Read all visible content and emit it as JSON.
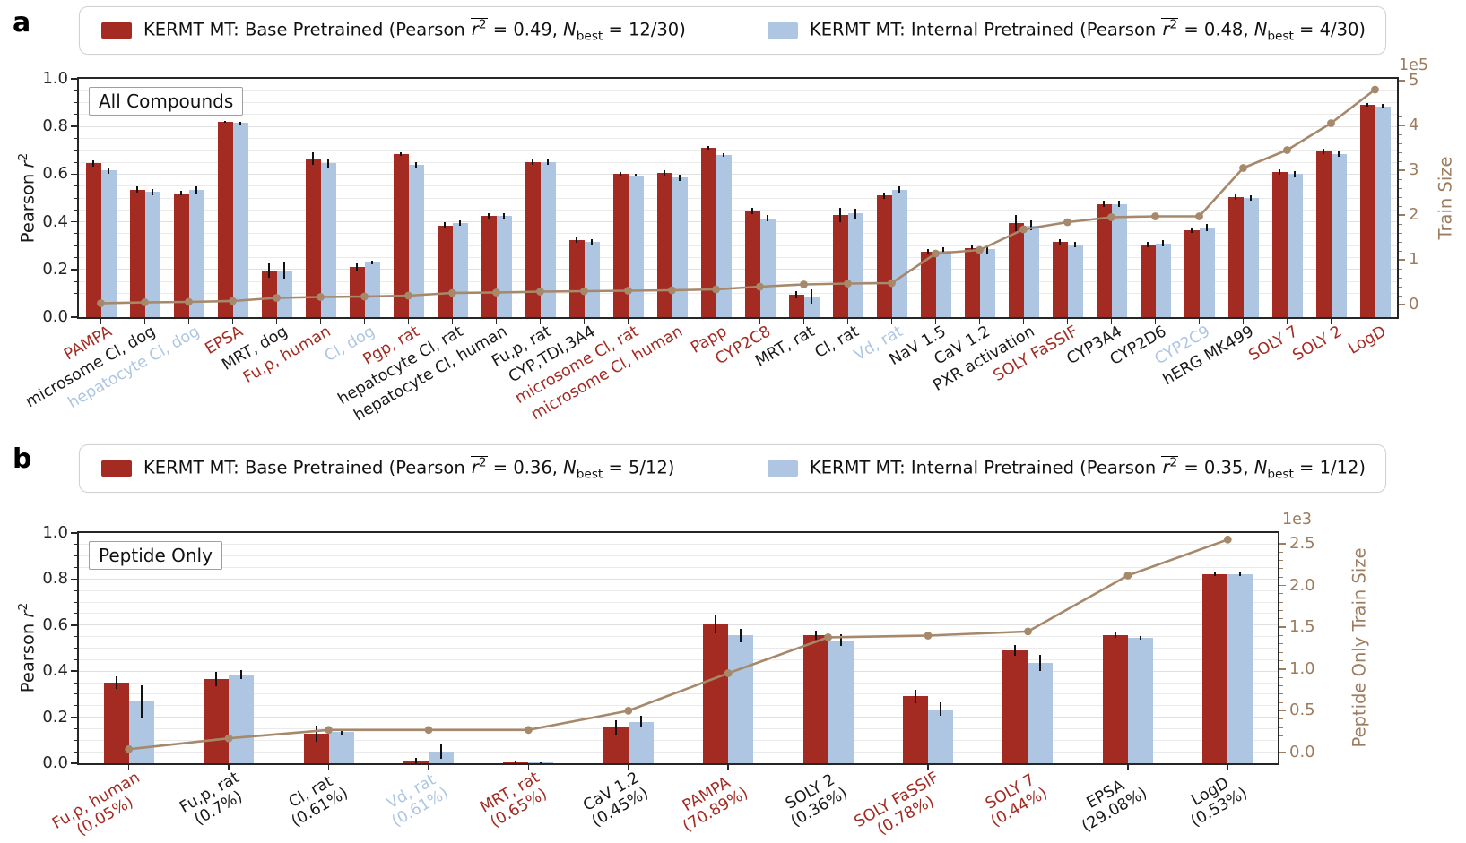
{
  "colors": {
    "base": "#a32b22",
    "internal": "#aec6e2",
    "train": "#a6886b",
    "axis_brown": "#9c7c5e",
    "label_red": "#a32b22",
    "label_blue": "#aec6e2",
    "label_black": "#1a1a1a",
    "grid": "#eaeaea",
    "spine": "#262626",
    "error": "#111111"
  },
  "legend_glue": {
    "pearson": "Pearson",
    "rsym": "r",
    "rsup": "2",
    "eq": "=",
    "sep": ", ",
    "nsym": "N",
    "nsub": "best"
  },
  "chart_data": [
    {
      "type": "bar+line",
      "panel_letter": "a",
      "annotation": "All Compounds",
      "legend": {
        "entries": [
          {
            "name": "KERMT MT: Base Pretrained",
            "pearson_r2": "0.49",
            "n_best": "12/30",
            "color_key": "base"
          },
          {
            "name": "KERMT MT: Internal Pretrained",
            "pearson_r2": "0.48",
            "n_best": "4/30",
            "color_key": "internal"
          }
        ]
      },
      "axes": {
        "left": {
          "label_pre": "Pearson ",
          "label_sym": "r",
          "label_sup": "2",
          "ticks": [
            "0.0",
            "0.2",
            "0.4",
            "0.6",
            "0.8",
            "1.0"
          ],
          "tick_values": [
            0,
            0.2,
            0.4,
            0.6,
            0.8,
            1.0
          ],
          "minor_step": 0.05,
          "ylim": [
            0,
            1
          ]
        },
        "right": {
          "label": "Train Size",
          "offset_text": "1e5",
          "ticks": [
            "0",
            "1",
            "2",
            "3",
            "4",
            "5"
          ],
          "tick_values": [
            0,
            1,
            2,
            3,
            4,
            5
          ],
          "unit": 100000
        }
      },
      "series_names": {
        "base": "KERMT MT: Base Pretrained",
        "internal": "KERMT MT: Internal Pretrained",
        "line": "Train Size"
      },
      "rows": [
        {
          "label": "PAMPA",
          "color": "red",
          "base": 0.645,
          "base_err": 0.012,
          "internal": 0.615,
          "internal_err": 0.012,
          "train": 0.03
        },
        {
          "label": "microsome Cl, dog",
          "color": "black",
          "base": 0.535,
          "base_err": 0.012,
          "internal": 0.525,
          "internal_err": 0.012,
          "train": 0.05
        },
        {
          "label": "hepatocyte Cl, dog",
          "color": "blue",
          "base": 0.52,
          "base_err": 0.01,
          "internal": 0.535,
          "internal_err": 0.015,
          "train": 0.06
        },
        {
          "label": "EPSA",
          "color": "red",
          "base": 0.82,
          "base_err": 0.005,
          "internal": 0.815,
          "internal_err": 0.006,
          "train": 0.08
        },
        {
          "label": "MRT, dog",
          "color": "black",
          "base": 0.195,
          "base_err": 0.03,
          "internal": 0.195,
          "internal_err": 0.035,
          "train": 0.15
        },
        {
          "label": "Fu,p, human",
          "color": "red",
          "base": 0.665,
          "base_err": 0.025,
          "internal": 0.645,
          "internal_err": 0.018,
          "train": 0.17
        },
        {
          "label": "Cl, dog",
          "color": "blue",
          "base": 0.21,
          "base_err": 0.015,
          "internal": 0.23,
          "internal_err": 0.008,
          "train": 0.18
        },
        {
          "label": "Pgp, rat",
          "color": "red",
          "base": 0.685,
          "base_err": 0.008,
          "internal": 0.64,
          "internal_err": 0.012,
          "train": 0.2
        },
        {
          "label": "hepatocyte Cl, rat",
          "color": "black",
          "base": 0.385,
          "base_err": 0.012,
          "internal": 0.395,
          "internal_err": 0.01,
          "train": 0.26
        },
        {
          "label": "hepatocyte Cl, human",
          "color": "black",
          "base": 0.425,
          "base_err": 0.01,
          "internal": 0.425,
          "internal_err": 0.012,
          "train": 0.27
        },
        {
          "label": "Fu,p, rat",
          "color": "black",
          "base": 0.65,
          "base_err": 0.01,
          "internal": 0.65,
          "internal_err": 0.01,
          "train": 0.29
        },
        {
          "label": "CYP,TDI,3A4",
          "color": "black",
          "base": 0.325,
          "base_err": 0.012,
          "internal": 0.315,
          "internal_err": 0.012,
          "train": 0.3
        },
        {
          "label": "microsome Cl, rat",
          "color": "red",
          "base": 0.6,
          "base_err": 0.008,
          "internal": 0.595,
          "internal_err": 0.006,
          "train": 0.31
        },
        {
          "label": "microsome Cl, human",
          "color": "red",
          "base": 0.605,
          "base_err": 0.01,
          "internal": 0.585,
          "internal_err": 0.012,
          "train": 0.32
        },
        {
          "label": "Papp",
          "color": "red",
          "base": 0.71,
          "base_err": 0.008,
          "internal": 0.68,
          "internal_err": 0.008,
          "train": 0.34
        },
        {
          "label": "CYP2C8",
          "color": "red",
          "base": 0.445,
          "base_err": 0.012,
          "internal": 0.415,
          "internal_err": 0.012,
          "train": 0.4
        },
        {
          "label": "MRT, rat",
          "color": "black",
          "base": 0.095,
          "base_err": 0.015,
          "internal": 0.085,
          "internal_err": 0.03,
          "train": 0.45
        },
        {
          "label": "Cl, rat",
          "color": "black",
          "base": 0.43,
          "base_err": 0.03,
          "internal": 0.435,
          "internal_err": 0.02,
          "train": 0.47
        },
        {
          "label": "Vd, rat",
          "color": "blue",
          "base": 0.51,
          "base_err": 0.012,
          "internal": 0.535,
          "internal_err": 0.012,
          "train": 0.48
        },
        {
          "label": "NaV 1.5",
          "color": "black",
          "base": 0.275,
          "base_err": 0.012,
          "internal": 0.28,
          "internal_err": 0.012,
          "train": 1.14
        },
        {
          "label": "CaV 1.2",
          "color": "black",
          "base": 0.29,
          "base_err": 0.015,
          "internal": 0.285,
          "internal_err": 0.02,
          "train": 1.22
        },
        {
          "label": "PXR activation",
          "color": "black",
          "base": 0.395,
          "base_err": 0.035,
          "internal": 0.385,
          "internal_err": 0.02,
          "train": 1.68
        },
        {
          "label": "SOLY FaSSIF",
          "color": "red",
          "base": 0.315,
          "base_err": 0.012,
          "internal": 0.305,
          "internal_err": 0.012,
          "train": 1.84
        },
        {
          "label": "CYP3A4",
          "color": "black",
          "base": 0.475,
          "base_err": 0.012,
          "internal": 0.475,
          "internal_err": 0.012,
          "train": 1.95
        },
        {
          "label": "CYP2D6",
          "color": "black",
          "base": 0.305,
          "base_err": 0.012,
          "internal": 0.31,
          "internal_err": 0.012,
          "train": 1.97
        },
        {
          "label": "CYP2C9",
          "color": "blue",
          "base": 0.365,
          "base_err": 0.012,
          "internal": 0.375,
          "internal_err": 0.015,
          "train": 1.97
        },
        {
          "label": "hERG MK499",
          "color": "black",
          "base": 0.505,
          "base_err": 0.012,
          "internal": 0.5,
          "internal_err": 0.012,
          "train": 3.05
        },
        {
          "label": "SOLY 7",
          "color": "red",
          "base": 0.61,
          "base_err": 0.012,
          "internal": 0.6,
          "internal_err": 0.012,
          "train": 3.45
        },
        {
          "label": "SOLY 2",
          "color": "red",
          "base": 0.695,
          "base_err": 0.01,
          "internal": 0.685,
          "internal_err": 0.012,
          "train": 4.05
        },
        {
          "label": "LogD",
          "color": "red",
          "base": 0.89,
          "base_err": 0.008,
          "internal": 0.885,
          "internal_err": 0.008,
          "train": 4.8
        }
      ]
    },
    {
      "type": "bar+line",
      "panel_letter": "b",
      "annotation": "Peptide Only",
      "legend": {
        "entries": [
          {
            "name": "KERMT MT: Base Pretrained",
            "pearson_r2": "0.36",
            "n_best": "5/12",
            "color_key": "base"
          },
          {
            "name": "KERMT MT: Internal Pretrained",
            "pearson_r2": "0.35",
            "n_best": "1/12",
            "color_key": "internal"
          }
        ]
      },
      "axes": {
        "left": {
          "label_pre": "Pearson ",
          "label_sym": "r",
          "label_sup": "2",
          "ticks": [
            "0.0",
            "0.2",
            "0.4",
            "0.6",
            "0.8",
            "1.0"
          ],
          "tick_values": [
            0,
            0.2,
            0.4,
            0.6,
            0.8,
            1.0
          ],
          "minor_step": 0.05,
          "ylim": [
            0,
            1
          ]
        },
        "right": {
          "label": "Peptide Only Train Size",
          "offset_text": "1e3",
          "ticks": [
            "0.0",
            "0.5",
            "1.0",
            "1.5",
            "2.0",
            "2.5"
          ],
          "tick_values": [
            0,
            0.5,
            1,
            1.5,
            2,
            2.5
          ],
          "unit": 1000
        }
      },
      "series_names": {
        "base": "KERMT MT: Base Pretrained",
        "internal": "KERMT MT: Internal Pretrained",
        "line": "Peptide Only Train Size"
      },
      "rows": [
        {
          "label": "Fu,p, human",
          "sub": "(0.05%)",
          "color": "red",
          "base": 0.35,
          "base_err": 0.028,
          "internal": 0.27,
          "internal_err": 0.07,
          "train": 0.04
        },
        {
          "label": "Fu,p, rat",
          "sub": "(0.7%)",
          "color": "black",
          "base": 0.365,
          "base_err": 0.03,
          "internal": 0.385,
          "internal_err": 0.02,
          "train": 0.17
        },
        {
          "label": "Cl, rat",
          "sub": "(0.61%)",
          "color": "black",
          "base": 0.13,
          "base_err": 0.035,
          "internal": 0.135,
          "internal_err": 0.012,
          "train": 0.27
        },
        {
          "label": "Vd, rat",
          "sub": "(0.61%)",
          "color": "blue",
          "base": 0.01,
          "base_err": 0.012,
          "internal": 0.05,
          "internal_err": 0.03,
          "train": 0.27
        },
        {
          "label": "MRT, rat",
          "sub": "(0.65%)",
          "color": "red",
          "base": 0.005,
          "base_err": 0.006,
          "internal": 0.002,
          "internal_err": 0.003,
          "train": 0.27
        },
        {
          "label": "CaV 1.2",
          "sub": "(0.45%)",
          "color": "black",
          "base": 0.155,
          "base_err": 0.03,
          "internal": 0.18,
          "internal_err": 0.025,
          "train": 0.5
        },
        {
          "label": "PAMPA",
          "sub": "(70.89%)",
          "color": "red",
          "base": 0.605,
          "base_err": 0.04,
          "internal": 0.555,
          "internal_err": 0.03,
          "train": 0.95
        },
        {
          "label": "SOLY 2",
          "sub": "(0.36%)",
          "color": "black",
          "base": 0.555,
          "base_err": 0.02,
          "internal": 0.535,
          "internal_err": 0.025,
          "train": 1.38
        },
        {
          "label": "SOLY FaSSIF",
          "sub": "(0.78%)",
          "color": "red",
          "base": 0.29,
          "base_err": 0.03,
          "internal": 0.235,
          "internal_err": 0.03,
          "train": 1.4
        },
        {
          "label": "SOLY 7",
          "sub": "(0.44%)",
          "color": "red",
          "base": 0.49,
          "base_err": 0.025,
          "internal": 0.435,
          "internal_err": 0.035,
          "train": 1.45
        },
        {
          "label": "EPSA",
          "sub": "(29.08%)",
          "color": "black",
          "base": 0.555,
          "base_err": 0.012,
          "internal": 0.545,
          "internal_err": 0.008,
          "train": 2.12
        },
        {
          "label": "LogD",
          "sub": "(0.53%)",
          "color": "black",
          "base": 0.82,
          "base_err": 0.008,
          "internal": 0.82,
          "internal_err": 0.008,
          "train": 2.55
        }
      ]
    }
  ]
}
